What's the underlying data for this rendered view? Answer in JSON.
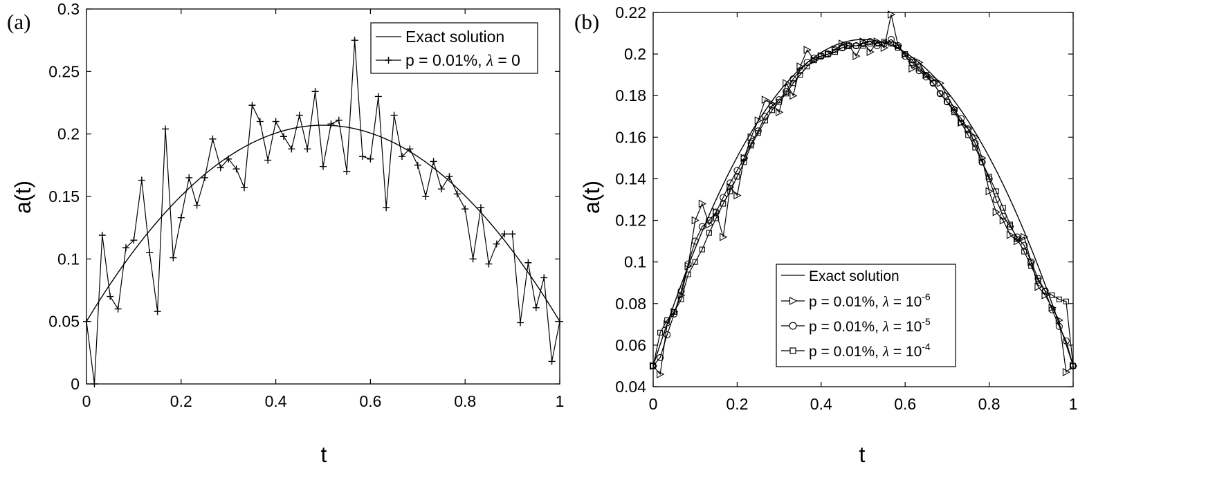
{
  "chart_data": [
    {
      "type": "line",
      "panel_label": "(a)",
      "xlabel": "t",
      "ylabel": "a(t)",
      "xlim": [
        0,
        1
      ],
      "ylim": [
        0,
        0.3
      ],
      "xticks": [
        "0",
        "0.2",
        "0.4",
        "0.6",
        "0.8",
        "1"
      ],
      "xtick_values": [
        0,
        0.2,
        0.4,
        0.6,
        0.8,
        1
      ],
      "yticks": [
        "0",
        "0.05",
        "0.1",
        "0.15",
        "0.2",
        "0.25",
        "0.3"
      ],
      "ytick_values": [
        0,
        0.05,
        0.1,
        0.15,
        0.2,
        0.25,
        0.3
      ],
      "legend_position": "top-right",
      "series": [
        {
          "name": "Exact solution",
          "marker": "none",
          "function": "exact"
        },
        {
          "name": "p = 0.01%, λ = 0",
          "legend_text": "p = 0.01%,",
          "legend_lambda": "λ",
          "legend_suffix": "= 0",
          "marker": "plus",
          "x": [
            0,
            0.0167,
            0.0333,
            0.05,
            0.0667,
            0.0833,
            0.1,
            0.1167,
            0.1333,
            0.15,
            0.1667,
            0.1833,
            0.2,
            0.2167,
            0.2333,
            0.25,
            0.2667,
            0.2833,
            0.3,
            0.3167,
            0.3333,
            0.35,
            0.3667,
            0.3833,
            0.4,
            0.4167,
            0.4333,
            0.45,
            0.4667,
            0.4833,
            0.5,
            0.5167,
            0.5333,
            0.55,
            0.5667,
            0.5833,
            0.6,
            0.6167,
            0.6333,
            0.65,
            0.6667,
            0.6833,
            0.7,
            0.7167,
            0.7333,
            0.75,
            0.7667,
            0.7833,
            0.8,
            0.8167,
            0.8333,
            0.85,
            0.8667,
            0.8833,
            0.9,
            0.9167,
            0.9333,
            0.95,
            0.9667,
            0.9833,
            1
          ],
          "y": [
            0.05,
            0.0,
            0.119,
            0.07,
            0.06,
            0.109,
            0.115,
            0.163,
            0.105,
            0.058,
            0.204,
            0.101,
            0.133,
            0.165,
            0.143,
            0.165,
            0.196,
            0.173,
            0.18,
            0.172,
            0.157,
            0.223,
            0.21,
            0.179,
            0.21,
            0.198,
            0.188,
            0.215,
            0.188,
            0.234,
            0.174,
            0.208,
            0.211,
            0.17,
            0.275,
            0.182,
            0.18,
            0.23,
            0.141,
            0.215,
            0.182,
            0.188,
            0.175,
            0.15,
            0.178,
            0.156,
            0.166,
            0.152,
            0.14,
            0.1,
            0.141,
            0.096,
            0.112,
            0.12,
            0.12,
            0.049,
            0.097,
            0.061,
            0.085,
            0.018,
            0.05
          ]
        }
      ]
    },
    {
      "type": "line",
      "panel_label": "(b)",
      "xlabel": "t",
      "ylabel": "a(t)",
      "xlim": [
        0,
        1
      ],
      "ylim": [
        0.04,
        0.22
      ],
      "xticks": [
        "0",
        "0.2",
        "0.4",
        "0.6",
        "0.8",
        "1"
      ],
      "xtick_values": [
        0,
        0.2,
        0.4,
        0.6,
        0.8,
        1
      ],
      "yticks": [
        "0.04",
        "0.06",
        "0.08",
        "0.1",
        "0.12",
        "0.14",
        "0.16",
        "0.18",
        "0.2",
        "0.22"
      ],
      "ytick_values": [
        0.04,
        0.06,
        0.08,
        0.1,
        0.12,
        0.14,
        0.16,
        0.18,
        0.2,
        0.22
      ],
      "legend_position": "lower-center",
      "series": [
        {
          "name": "Exact solution",
          "marker": "none",
          "function": "exact"
        },
        {
          "name": "p = 0.01%, λ = 10^-6",
          "legend_text": "p = 0.01%,",
          "legend_lambda": "λ",
          "legend_suffix": "= 10",
          "legend_exp": "-6",
          "marker": "triangle-right",
          "x": [
            0,
            0.0167,
            0.0333,
            0.05,
            0.0667,
            0.0833,
            0.1,
            0.1167,
            0.1333,
            0.15,
            0.1667,
            0.1833,
            0.2,
            0.2167,
            0.2333,
            0.25,
            0.2667,
            0.2833,
            0.3,
            0.3167,
            0.3333,
            0.35,
            0.3667,
            0.3833,
            0.4,
            0.4167,
            0.4333,
            0.45,
            0.4667,
            0.4833,
            0.5,
            0.5167,
            0.5333,
            0.55,
            0.5667,
            0.5833,
            0.6,
            0.6167,
            0.6333,
            0.65,
            0.6667,
            0.6833,
            0.7,
            0.7167,
            0.7333,
            0.75,
            0.7667,
            0.7833,
            0.8,
            0.8167,
            0.8333,
            0.85,
            0.8667,
            0.8833,
            0.9,
            0.9167,
            0.9333,
            0.95,
            0.9667,
            0.9833,
            1
          ],
          "y": [
            0.05,
            0.046,
            0.07,
            0.076,
            0.084,
            0.098,
            0.12,
            0.128,
            0.118,
            0.124,
            0.112,
            0.136,
            0.132,
            0.15,
            0.16,
            0.168,
            0.178,
            0.176,
            0.172,
            0.186,
            0.18,
            0.194,
            0.202,
            0.197,
            0.199,
            0.2,
            0.202,
            0.205,
            0.204,
            0.199,
            0.206,
            0.201,
            0.206,
            0.203,
            0.219,
            0.204,
            0.2,
            0.193,
            0.196,
            0.19,
            0.188,
            0.186,
            0.18,
            0.174,
            0.167,
            0.164,
            0.16,
            0.15,
            0.134,
            0.124,
            0.12,
            0.113,
            0.11,
            0.112,
            0.1,
            0.088,
            0.084,
            0.078,
            0.072,
            0.047,
            0.05
          ]
        },
        {
          "name": "p = 0.01%, λ = 10^-5",
          "legend_text": "p = 0.01%,",
          "legend_lambda": "λ",
          "legend_suffix": "= 10",
          "legend_exp": "-5",
          "marker": "circle",
          "x": [
            0,
            0.0167,
            0.0333,
            0.05,
            0.0667,
            0.0833,
            0.1,
            0.1167,
            0.1333,
            0.15,
            0.1667,
            0.1833,
            0.2,
            0.2167,
            0.2333,
            0.25,
            0.2667,
            0.2833,
            0.3,
            0.3167,
            0.3333,
            0.35,
            0.3667,
            0.3833,
            0.4,
            0.4167,
            0.4333,
            0.45,
            0.4667,
            0.4833,
            0.5,
            0.5167,
            0.5333,
            0.55,
            0.5667,
            0.5833,
            0.6,
            0.6167,
            0.6333,
            0.65,
            0.6667,
            0.6833,
            0.7,
            0.7167,
            0.7333,
            0.75,
            0.7667,
            0.7833,
            0.8,
            0.8167,
            0.8333,
            0.85,
            0.8667,
            0.8833,
            0.9,
            0.9167,
            0.9333,
            0.95,
            0.9667,
            0.9833,
            1
          ],
          "y": [
            0.05,
            0.054,
            0.065,
            0.075,
            0.086,
            0.099,
            0.11,
            0.117,
            0.12,
            0.124,
            0.131,
            0.138,
            0.144,
            0.15,
            0.157,
            0.163,
            0.17,
            0.175,
            0.178,
            0.182,
            0.188,
            0.192,
            0.196,
            0.198,
            0.199,
            0.2,
            0.202,
            0.203,
            0.204,
            0.204,
            0.205,
            0.206,
            0.204,
            0.205,
            0.207,
            0.204,
            0.199,
            0.196,
            0.192,
            0.189,
            0.186,
            0.181,
            0.177,
            0.173,
            0.169,
            0.164,
            0.157,
            0.148,
            0.14,
            0.13,
            0.122,
            0.117,
            0.112,
            0.108,
            0.1,
            0.092,
            0.086,
            0.077,
            0.069,
            0.062,
            0.05
          ]
        },
        {
          "name": "p = 0.01%, λ = 10^-4",
          "legend_text": "p = 0.01%,",
          "legend_lambda": "λ",
          "legend_suffix": "= 10",
          "legend_exp": "-4",
          "marker": "square",
          "x": [
            0,
            0.0167,
            0.0333,
            0.05,
            0.0667,
            0.0833,
            0.1,
            0.1167,
            0.1333,
            0.15,
            0.1667,
            0.1833,
            0.2,
            0.2167,
            0.2333,
            0.25,
            0.2667,
            0.2833,
            0.3,
            0.3167,
            0.3333,
            0.35,
            0.3667,
            0.3833,
            0.4,
            0.4167,
            0.4333,
            0.45,
            0.4667,
            0.4833,
            0.5,
            0.5167,
            0.5333,
            0.55,
            0.5667,
            0.5833,
            0.6,
            0.6167,
            0.6333,
            0.65,
            0.6667,
            0.6833,
            0.7,
            0.7167,
            0.7333,
            0.75,
            0.7667,
            0.7833,
            0.8,
            0.8167,
            0.8333,
            0.85,
            0.8667,
            0.8833,
            0.9,
            0.9167,
            0.9333,
            0.95,
            0.9667,
            0.9833,
            1
          ],
          "y": [
            0.05,
            0.066,
            0.072,
            0.076,
            0.082,
            0.094,
            0.1,
            0.106,
            0.114,
            0.121,
            0.128,
            0.134,
            0.141,
            0.148,
            0.156,
            0.162,
            0.168,
            0.173,
            0.177,
            0.181,
            0.186,
            0.19,
            0.194,
            0.197,
            0.199,
            0.2,
            0.201,
            0.203,
            0.204,
            0.204,
            0.204,
            0.205,
            0.205,
            0.206,
            0.205,
            0.203,
            0.2,
            0.197,
            0.193,
            0.19,
            0.186,
            0.181,
            0.177,
            0.172,
            0.167,
            0.161,
            0.155,
            0.148,
            0.141,
            0.134,
            0.126,
            0.118,
            0.111,
            0.105,
            0.098,
            0.091,
            0.086,
            0.084,
            0.082,
            0.081,
            0.05
          ]
        }
      ]
    }
  ]
}
